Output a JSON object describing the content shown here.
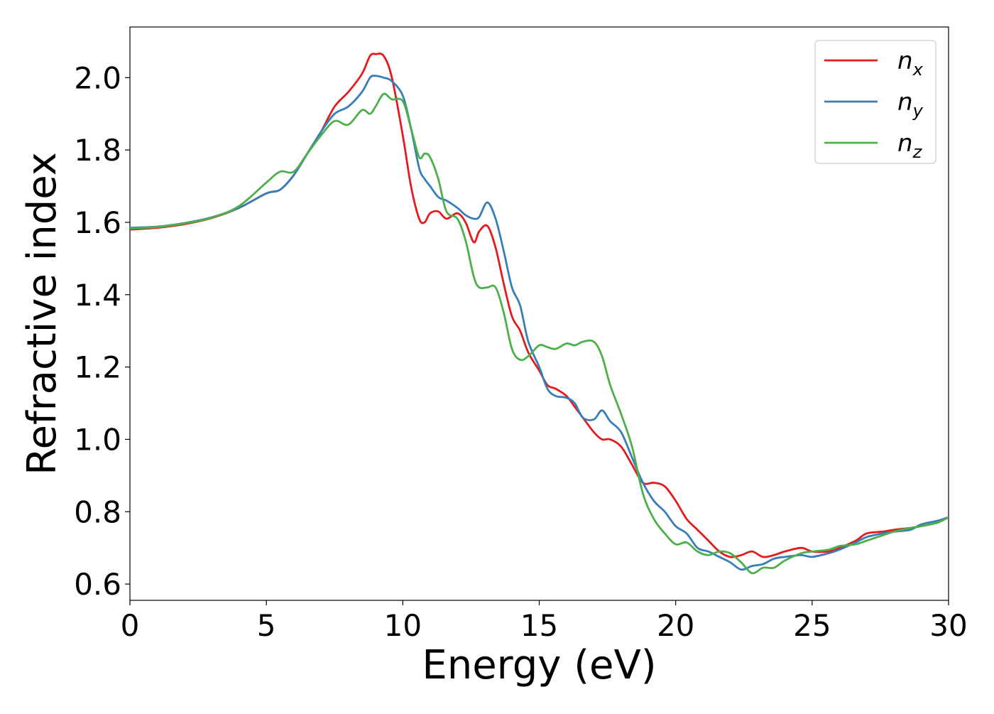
{
  "chart_data": {
    "type": "line",
    "title": "",
    "xlabel": "Energy (eV)",
    "ylabel": "Refractive index",
    "xlim": [
      0,
      30
    ],
    "ylim": [
      0.555,
      2.14
    ],
    "xticks": [
      0,
      5,
      10,
      15,
      20,
      25,
      30
    ],
    "xtick_labels": [
      "0",
      "5",
      "10",
      "15",
      "20",
      "25",
      "30"
    ],
    "yticks": [
      0.6,
      0.8,
      1.0,
      1.2,
      1.4,
      1.6,
      1.8,
      2.0
    ],
    "ytick_labels": [
      "0.6",
      "0.8",
      "1.0",
      "1.2",
      "1.4",
      "1.6",
      "1.8",
      "2.0"
    ],
    "grid": false,
    "legend_position": "top-right",
    "series": [
      {
        "name": "n_x",
        "legend_base": "n",
        "legend_sub": "x",
        "color": "#e41a1c",
        "x": [
          0,
          1,
          2,
          3,
          4,
          5,
          5.5,
          6,
          6.5,
          7,
          7.5,
          8,
          8.5,
          8.8,
          9,
          9.3,
          9.6,
          10,
          10.3,
          10.6,
          10.8,
          11,
          11.3,
          11.6,
          12,
          12.3,
          12.6,
          12.8,
          13.1,
          13.4,
          13.7,
          14,
          14.3,
          14.6,
          15,
          15.3,
          15.6,
          16,
          16.3,
          16.6,
          17,
          17.3,
          17.6,
          18,
          18.4,
          18.8,
          19.2,
          19.6,
          20,
          20.4,
          20.8,
          21.2,
          21.6,
          22,
          22.4,
          22.8,
          23.2,
          23.6,
          24,
          24.6,
          25,
          25.6,
          26,
          26.6,
          27,
          27.6,
          28,
          28.6,
          29,
          29.6,
          30
        ],
        "y": [
          1.58,
          1.585,
          1.595,
          1.612,
          1.64,
          1.68,
          1.69,
          1.73,
          1.79,
          1.85,
          1.92,
          1.96,
          2.01,
          2.06,
          2.065,
          2.06,
          2.0,
          1.84,
          1.7,
          1.61,
          1.6,
          1.625,
          1.63,
          1.61,
          1.625,
          1.6,
          1.545,
          1.575,
          1.59,
          1.53,
          1.43,
          1.34,
          1.3,
          1.24,
          1.19,
          1.15,
          1.14,
          1.12,
          1.09,
          1.06,
          1.02,
          1.0,
          1.0,
          0.98,
          0.93,
          0.88,
          0.88,
          0.87,
          0.83,
          0.78,
          0.75,
          0.72,
          0.69,
          0.675,
          0.68,
          0.69,
          0.675,
          0.68,
          0.69,
          0.7,
          0.69,
          0.69,
          0.7,
          0.72,
          0.74,
          0.745,
          0.75,
          0.755,
          0.76,
          0.77,
          0.785
        ]
      },
      {
        "name": "n_y",
        "legend_base": "n",
        "legend_sub": "y",
        "color": "#377eb8",
        "x": [
          0,
          1,
          2,
          3,
          4,
          5,
          5.5,
          6,
          6.5,
          7,
          7.5,
          8,
          8.5,
          8.8,
          9,
          9.3,
          9.6,
          10,
          10.3,
          10.6,
          10.8,
          11,
          11.3,
          11.6,
          12,
          12.3,
          12.6,
          12.8,
          13.1,
          13.4,
          13.7,
          14,
          14.3,
          14.6,
          15,
          15.3,
          15.6,
          16,
          16.3,
          16.6,
          17,
          17.3,
          17.6,
          18,
          18.4,
          18.8,
          19.2,
          19.6,
          20,
          20.4,
          20.8,
          21.2,
          21.6,
          22,
          22.4,
          22.8,
          23.2,
          23.6,
          24,
          24.6,
          25,
          25.6,
          26,
          26.6,
          27,
          27.6,
          28,
          28.6,
          29,
          29.6,
          30
        ],
        "y": [
          1.585,
          1.588,
          1.598,
          1.614,
          1.64,
          1.68,
          1.69,
          1.73,
          1.79,
          1.85,
          1.9,
          1.92,
          1.96,
          2.0,
          2.005,
          2.0,
          1.99,
          1.95,
          1.86,
          1.75,
          1.72,
          1.7,
          1.67,
          1.66,
          1.64,
          1.62,
          1.61,
          1.615,
          1.655,
          1.61,
          1.52,
          1.42,
          1.37,
          1.27,
          1.2,
          1.14,
          1.12,
          1.115,
          1.1,
          1.06,
          1.055,
          1.08,
          1.05,
          1.02,
          0.95,
          0.88,
          0.83,
          0.8,
          0.76,
          0.74,
          0.7,
          0.69,
          0.675,
          0.66,
          0.64,
          0.65,
          0.655,
          0.67,
          0.675,
          0.68,
          0.675,
          0.685,
          0.695,
          0.715,
          0.73,
          0.74,
          0.745,
          0.75,
          0.765,
          0.775,
          0.785
        ]
      },
      {
        "name": "n_z",
        "legend_base": "n",
        "legend_sub": "z",
        "color": "#4daf4a",
        "x": [
          0,
          1,
          2,
          3,
          4,
          5,
          5.5,
          6,
          6.5,
          7,
          7.5,
          8,
          8.5,
          8.8,
          9,
          9.3,
          9.6,
          10,
          10.3,
          10.6,
          10.8,
          11,
          11.3,
          11.6,
          12,
          12.3,
          12.6,
          12.8,
          13.1,
          13.4,
          13.7,
          14,
          14.3,
          14.6,
          15,
          15.3,
          15.6,
          16,
          16.3,
          16.6,
          17,
          17.3,
          17.6,
          18,
          18.4,
          18.8,
          19.2,
          19.6,
          20,
          20.4,
          20.8,
          21.2,
          21.6,
          22,
          22.4,
          22.8,
          23.2,
          23.6,
          24,
          24.6,
          25,
          25.6,
          26,
          26.6,
          27,
          27.6,
          28,
          28.6,
          29,
          29.6,
          30
        ],
        "y": [
          1.583,
          1.587,
          1.597,
          1.613,
          1.645,
          1.71,
          1.74,
          1.74,
          1.79,
          1.84,
          1.88,
          1.87,
          1.91,
          1.9,
          1.92,
          1.955,
          1.94,
          1.935,
          1.86,
          1.78,
          1.79,
          1.78,
          1.72,
          1.63,
          1.61,
          1.55,
          1.45,
          1.42,
          1.42,
          1.42,
          1.35,
          1.25,
          1.22,
          1.23,
          1.26,
          1.255,
          1.25,
          1.265,
          1.26,
          1.27,
          1.27,
          1.23,
          1.15,
          1.07,
          0.98,
          0.85,
          0.78,
          0.74,
          0.71,
          0.715,
          0.69,
          0.68,
          0.69,
          0.685,
          0.66,
          0.63,
          0.645,
          0.645,
          0.665,
          0.685,
          0.69,
          0.695,
          0.705,
          0.71,
          0.72,
          0.735,
          0.745,
          0.755,
          0.76,
          0.77,
          0.785
        ]
      }
    ]
  }
}
